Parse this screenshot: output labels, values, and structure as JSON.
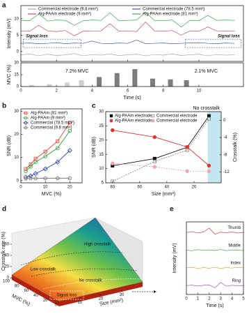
{
  "chart_data": [
    {
      "panel": "a",
      "type": "line",
      "ylabel": "Intensity (mV)",
      "x": [
        0,
        0.5,
        1,
        1.5,
        2,
        2.5,
        3,
        3.5,
        4,
        4.5,
        5,
        5.5,
        6,
        6.5,
        7,
        7.5,
        8,
        8.5,
        9,
        9.5,
        10,
        10.5,
        11,
        11.5,
        12
      ],
      "xlim": [
        0,
        12.5
      ],
      "xticks": [
        0,
        2,
        4,
        6,
        8,
        10
      ],
      "ylim": [
        -3,
        14
      ],
      "yticks": [
        0,
        5,
        10
      ],
      "annotations": [
        "Signal loss",
        "Signal loss"
      ],
      "series": [
        {
          "name": "Commercial electrode (9.8 mm²)",
          "color": "#9a9a9a",
          "values": [
            -1,
            -0.7,
            -1.3,
            -0.8,
            -1.2,
            -1,
            -0.6,
            -1.3,
            -0.9,
            -1.1,
            -0.7,
            -1.2,
            -1,
            -0.8,
            -1.3,
            -0.9,
            -1.1,
            -0.7,
            -1.2,
            -1,
            -0.8,
            -1.3,
            -0.9,
            -1.1,
            -1
          ]
        },
        {
          "name": "Commercial electrode (78.5 mm²)",
          "color": "#233a9b",
          "values": [
            2.5,
            2.6,
            2.4,
            2.5,
            2.7,
            2.4,
            2.6,
            2.5,
            3.2,
            2.5,
            2.4,
            2.6,
            2.5,
            3.5,
            2.4,
            2.5,
            2.6,
            2.4,
            2.5,
            2.6,
            2.7,
            2.5,
            2.4,
            2.6,
            2.5
          ]
        },
        {
          "name": "Alg-PAAm electrode (9 mm²)",
          "color": "#d8262b",
          "values": [
            6.3,
            6.2,
            8,
            6.3,
            6.1,
            6.4,
            4.8,
            6.2,
            6.3,
            6.3,
            8.5,
            6.2,
            6.3,
            6.1,
            9,
            6.3,
            6.2,
            6.4,
            5,
            6.3,
            6.2,
            7.5,
            6.3,
            6.2,
            6.3
          ]
        },
        {
          "name": "Alg-PAAm electrode (81 mm²)",
          "color": "#1b9a3c",
          "values": [
            9.5,
            9.4,
            11.5,
            9.3,
            9.6,
            9.5,
            8,
            9.4,
            9.6,
            9.5,
            11.8,
            9.4,
            9.5,
            9.6,
            12,
            9.5,
            9.4,
            9.6,
            7.5,
            9.5,
            9.4,
            11,
            9.5,
            9.6,
            9.5
          ]
        }
      ]
    },
    {
      "type": "bar",
      "ylabel": "MVC (%)",
      "xlabel": "Time (s)",
      "x": [
        0.6,
        1.6,
        2.6,
        3.4,
        4.4,
        5.4,
        6.4,
        7.4,
        8.4,
        9.3
      ],
      "values": [
        2,
        3,
        5,
        8,
        12,
        17,
        22,
        10,
        9,
        8
      ],
      "colors": [
        "#cfcfcf",
        "#cfcfcf",
        "#cfcfcf",
        "#cfcfcf",
        "#7d7d7d",
        "#7d7d7d",
        "#7d7d7d",
        "#7d7d7d",
        "#7d7d7d",
        "#7d7d7d"
      ],
      "xlim": [
        0,
        12.5
      ],
      "xticks": [
        0,
        2,
        4,
        6,
        8,
        10
      ],
      "ylim": [
        0,
        30
      ],
      "yticks": [
        0,
        15,
        30
      ],
      "annotations": [
        "7.2% MVC",
        "2.1% MVC"
      ]
    },
    {
      "panel": "b",
      "type": "line",
      "xlabel": "MVC (%)",
      "ylabel": "SNR (dB)",
      "x": [
        2,
        4,
        6,
        10,
        15,
        20
      ],
      "xlim": [
        0,
        25
      ],
      "xticks": [
        0,
        10,
        20
      ],
      "ylim": [
        -1,
        31
      ],
      "yticks": [
        0,
        10,
        20,
        30
      ],
      "series": [
        {
          "name": "Alg-PAAm (81 mm²)",
          "color": "#e8413c",
          "marker": "square",
          "values": [
            5,
            7,
            9.5,
            12.5,
            17,
            25
          ]
        },
        {
          "name": "Alg-PAAm (9 mm²)",
          "color": "#2ca02c",
          "marker": "circle",
          "values": [
            4,
            6,
            8,
            10.5,
            14,
            21.5
          ]
        },
        {
          "name": "Commercial (78.5 mm²)",
          "color": "#2c3fa8",
          "marker": "diamond",
          "values": [
            1.5,
            2,
            3,
            5,
            8,
            13
          ]
        },
        {
          "name": "Commercial (9.8 mm²)",
          "color": "#777777",
          "marker": "pentagon",
          "values": [
            0.8,
            0.9,
            0.9,
            1,
            1,
            1
          ]
        }
      ]
    },
    {
      "panel": "c",
      "type": "line",
      "xlabel": "Size (mm²)",
      "ylabel": "SNR (dB)",
      "y2label": "Crosstalk (%)",
      "x": [
        80,
        49,
        25,
        9
      ],
      "xlim": [
        85,
        0
      ],
      "xticks": [
        80,
        60,
        40,
        20
      ],
      "ylim": [
        5,
        30
      ],
      "yticks": [
        5,
        10,
        15,
        20,
        25,
        30
      ],
      "y2lim": [
        -14.5,
        2
      ],
      "y2ticks": [
        0,
        -4,
        -8,
        -12
      ],
      "annotations": [
        "No crosstalk"
      ],
      "shaded_xrange": [
        10,
        0
      ],
      "shade_color": "#c3e6f0",
      "series": [
        {
          "name": "Alg-PAAm electrode",
          "color": "#111111",
          "marker": "square",
          "filled": true,
          "values": [
            11,
            13.5,
            17.5,
            28.5
          ]
        },
        {
          "name": "Commercial electrode",
          "color": "#888888",
          "marker": "square",
          "line_style": "dashed",
          "values": [
            5.5,
            12.5,
            16.5,
            27.5
          ]
        },
        {
          "name": "Alg-PAAm electrode",
          "color": "#e8312c",
          "marker": "circle",
          "filled": true,
          "axis": "y2",
          "values": [
            -2.3,
            -3.9,
            -6.2,
            -10.5
          ]
        },
        {
          "name": "Commercial electrode",
          "color": "#f2a5a5",
          "marker": "circle",
          "filled": true,
          "line_style": "dashed",
          "axis": "y2",
          "values": [
            -10,
            -10.8,
            -11.8,
            -11.8
          ]
        }
      ]
    },
    {
      "panel": "d",
      "type": "surface",
      "xlabel": "MVC (%)",
      "ylabel": "Size (mm²)",
      "zlabel": "Crosstalk rate (%)",
      "xlim": [
        0,
        100
      ],
      "xticks": [
        100,
        80,
        60,
        40,
        20,
        0
      ],
      "ylim": [
        0,
        40
      ],
      "yticks": [
        10,
        20,
        30
      ],
      "zlim": [
        0,
        80
      ],
      "zticks": [
        0,
        20,
        40,
        60
      ],
      "annotations": [
        "High crosstalk",
        "Low crosstalk",
        "No crosstalk",
        "Signal loss"
      ]
    },
    {
      "panel": "e",
      "type": "line",
      "xlabel": "Time (s)",
      "ylabel": "Intensity (mV)",
      "x": [
        0,
        0.5,
        1,
        1.5,
        2,
        2.5,
        3,
        3.5,
        4,
        4.5,
        5
      ],
      "xlim": [
        0,
        5
      ],
      "xticks": [
        0,
        1,
        2,
        3,
        4,
        5
      ],
      "ylim": [
        -0.5,
        3.6
      ],
      "series": [
        {
          "name": "Thumb",
          "color": "#d62728",
          "values": [
            3,
            3.05,
            2.97,
            3.03,
            3.25,
            2.9,
            3.02,
            2.98,
            3.04,
            2.97,
            3
          ]
        },
        {
          "name": "Middle",
          "color": "#2ca02c",
          "values": [
            2,
            1.97,
            2.03,
            2,
            2.02,
            1.98,
            2.04,
            1.97,
            2.02,
            2,
            1.98
          ]
        },
        {
          "name": "Index",
          "color": "#ff8c1a",
          "values": [
            1,
            1.03,
            0.97,
            1.02,
            0.98,
            1.03,
            0.97,
            1.02,
            0.99,
            1.03,
            1
          ]
        },
        {
          "name": "Ring",
          "color": "#9b3fb5",
          "values": [
            0,
            0.03,
            -0.03,
            0.02,
            0.04,
            -0.12,
            0.18,
            -0.03,
            0.02,
            -0.02,
            0
          ]
        }
      ]
    }
  ]
}
